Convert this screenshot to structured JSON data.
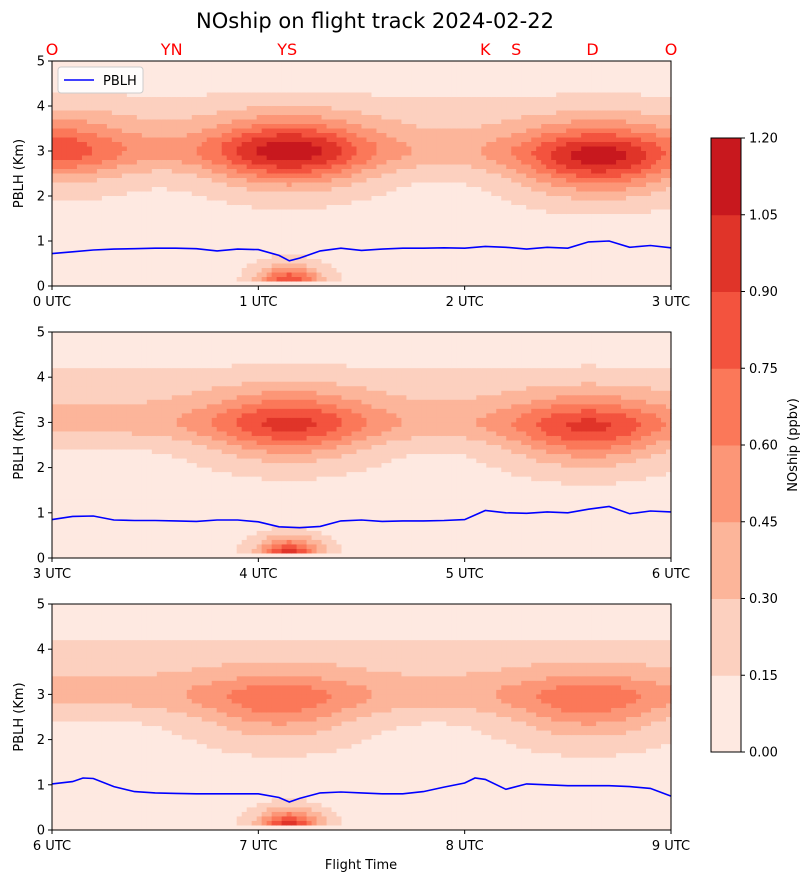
{
  "chart_data": {
    "type": "contour",
    "title": "NOship on flight track 2024-02-22",
    "xlabel": "Flight Time",
    "colorbar": {
      "label": "NOship (ppbv)",
      "levels": [
        0.0,
        0.15,
        0.3,
        0.45,
        0.6,
        0.75,
        0.9,
        1.05,
        1.2
      ],
      "tick_labels": [
        "0.00",
        "0.15",
        "0.30",
        "0.45",
        "0.60",
        "0.75",
        "0.90",
        "1.05",
        "1.20"
      ],
      "colors": [
        "#fee9e1",
        "#fcd0bf",
        "#fcb59a",
        "#fc9677",
        "#fb7859",
        "#f3533e",
        "#e03429",
        "#c8181e"
      ]
    },
    "location_markers": {
      "color": "#ff0000",
      "labels": [
        {
          "label": "O",
          "time_utc": 0.0
        },
        {
          "label": "YN",
          "time_utc": 0.58
        },
        {
          "label": "YS",
          "time_utc": 1.14
        },
        {
          "label": "K",
          "time_utc": 2.1
        },
        {
          "label": "S",
          "time_utc": 2.25
        },
        {
          "label": "D",
          "time_utc": 2.62
        },
        {
          "label": "O",
          "time_utc": 3.0
        }
      ]
    },
    "legend": {
      "entries": [
        "PBLH"
      ],
      "position": "upper-left"
    },
    "panels": [
      {
        "ylabel": "PBLH (Km)",
        "ylim": [
          0,
          5
        ],
        "yticks": [
          "0",
          "1",
          "2",
          "3",
          "4",
          "5"
        ],
        "xlim_utc": [
          0,
          3
        ],
        "xticks": [
          "0 UTC",
          "1 UTC",
          "2 UTC",
          "3 UTC"
        ],
        "pblh_series": {
          "name": "PBLH",
          "color": "#0000ff",
          "x": [
            0.0,
            0.1,
            0.2,
            0.3,
            0.4,
            0.5,
            0.6,
            0.7,
            0.8,
            0.9,
            1.0,
            1.1,
            1.15,
            1.2,
            1.3,
            1.4,
            1.5,
            1.6,
            1.7,
            1.8,
            1.9,
            2.0,
            2.1,
            2.2,
            2.3,
            2.4,
            2.5,
            2.6,
            2.7,
            2.8,
            2.9,
            3.0
          ],
          "y": [
            0.72,
            0.76,
            0.8,
            0.82,
            0.83,
            0.84,
            0.84,
            0.83,
            0.78,
            0.82,
            0.81,
            0.68,
            0.56,
            0.62,
            0.78,
            0.84,
            0.79,
            0.82,
            0.84,
            0.84,
            0.85,
            0.84,
            0.88,
            0.86,
            0.82,
            0.86,
            0.84,
            0.98,
            1.0,
            0.86,
            0.9,
            0.85
          ]
        },
        "features": [
          {
            "center_utc": 1.15,
            "center_km": 2.95,
            "peak_ppbv": 1.1
          },
          {
            "center_utc": 2.65,
            "center_km": 2.8,
            "peak_ppbv": 1.1
          },
          {
            "center_utc": 0.0,
            "center_km": 3.0,
            "peak_ppbv": 0.8
          },
          {
            "center_utc": 1.15,
            "center_km": 0.1,
            "peak_ppbv": 1.1
          }
        ]
      },
      {
        "ylabel": "PBLH (Km)",
        "ylim": [
          0,
          5
        ],
        "yticks": [
          "0",
          "1",
          "2",
          "3",
          "4",
          "5"
        ],
        "xlim_utc": [
          3,
          6
        ],
        "xticks": [
          "3 UTC",
          "4 UTC",
          "5 UTC",
          "6 UTC"
        ],
        "pblh_series": {
          "name": "PBLH",
          "color": "#0000ff",
          "x": [
            3.0,
            3.1,
            3.2,
            3.3,
            3.4,
            3.5,
            3.6,
            3.7,
            3.8,
            3.9,
            4.0,
            4.1,
            4.2,
            4.3,
            4.4,
            4.5,
            4.6,
            4.7,
            4.8,
            4.9,
            5.0,
            5.1,
            5.2,
            5.3,
            5.4,
            5.5,
            5.6,
            5.7,
            5.8,
            5.9,
            6.0
          ],
          "y": [
            0.85,
            0.92,
            0.93,
            0.84,
            0.83,
            0.83,
            0.82,
            0.81,
            0.84,
            0.84,
            0.8,
            0.69,
            0.67,
            0.7,
            0.82,
            0.84,
            0.81,
            0.82,
            0.82,
            0.83,
            0.85,
            1.05,
            1.0,
            0.99,
            1.02,
            1.0,
            1.08,
            1.14,
            0.98,
            1.04,
            1.02
          ]
        },
        "features": [
          {
            "center_utc": 4.15,
            "center_km": 2.9,
            "peak_ppbv": 0.9
          },
          {
            "center_utc": 5.6,
            "center_km": 2.8,
            "peak_ppbv": 0.9
          },
          {
            "center_utc": 4.15,
            "center_km": 0.1,
            "peak_ppbv": 1.15
          }
        ]
      },
      {
        "ylabel": "PBLH (Km)",
        "ylim": [
          0,
          5
        ],
        "yticks": [
          "0",
          "1",
          "2",
          "3",
          "4",
          "5"
        ],
        "xlim_utc": [
          6,
          9
        ],
        "xticks": [
          "6 UTC",
          "7 UTC",
          "8 UTC",
          "9 UTC"
        ],
        "pblh_series": {
          "name": "PBLH",
          "color": "#0000ff",
          "x": [
            6.0,
            6.1,
            6.15,
            6.2,
            6.3,
            6.4,
            6.5,
            6.6,
            6.7,
            6.8,
            6.9,
            7.0,
            7.1,
            7.15,
            7.2,
            7.3,
            7.4,
            7.5,
            7.6,
            7.7,
            7.8,
            7.9,
            8.0,
            8.05,
            8.1,
            8.2,
            8.3,
            8.4,
            8.5,
            8.6,
            8.7,
            8.8,
            8.9,
            9.0
          ],
          "y": [
            1.02,
            1.07,
            1.15,
            1.14,
            0.96,
            0.85,
            0.82,
            0.81,
            0.8,
            0.8,
            0.8,
            0.8,
            0.72,
            0.62,
            0.7,
            0.82,
            0.84,
            0.82,
            0.8,
            0.8,
            0.85,
            0.95,
            1.04,
            1.15,
            1.12,
            0.9,
            1.02,
            1.0,
            0.98,
            0.98,
            0.98,
            0.96,
            0.92,
            0.75
          ]
        },
        "features": [
          {
            "center_utc": 7.1,
            "center_km": 2.7,
            "peak_ppbv": 0.7
          },
          {
            "center_utc": 8.6,
            "center_km": 2.7,
            "peak_ppbv": 0.7
          },
          {
            "center_utc": 7.15,
            "center_km": 0.1,
            "peak_ppbv": 1.15
          }
        ]
      }
    ]
  }
}
